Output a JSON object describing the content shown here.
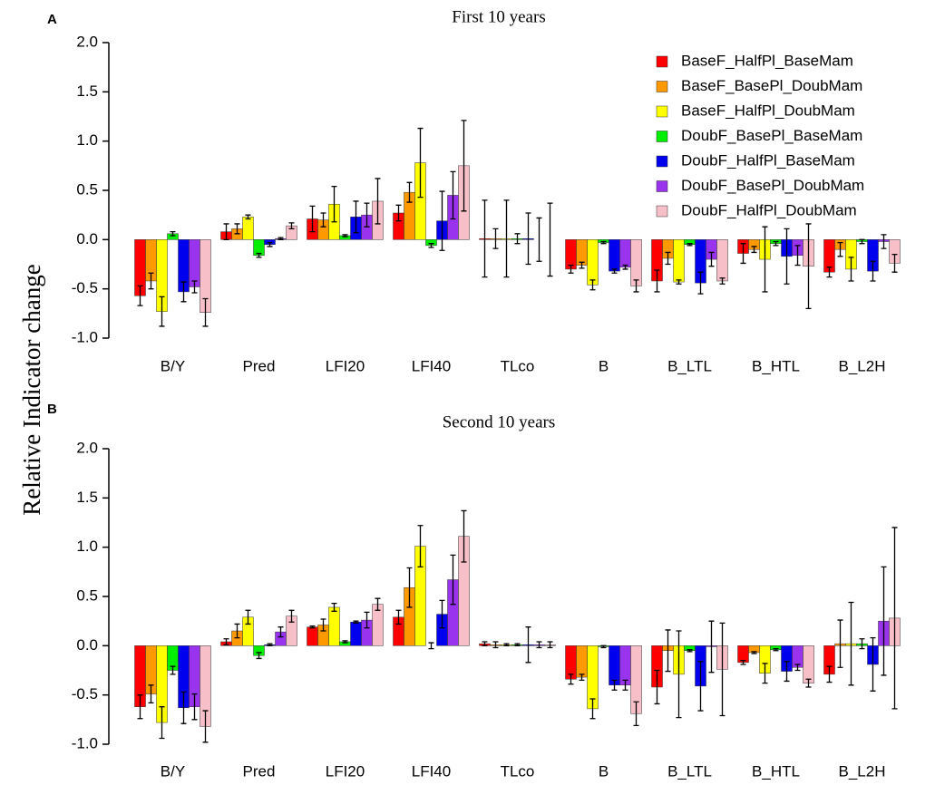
{
  "chart_data": [
    {
      "type": "bar",
      "panel_label": "A",
      "title": "First 10 years",
      "y_label": "Relative Indicator change",
      "categories": [
        "B/Y",
        "Pred",
        "LFI20",
        "LFI40",
        "TLco",
        "B",
        "B_LTL",
        "B_HTL",
        "B_L2H"
      ],
      "ylim": [
        -1.0,
        2.0
      ],
      "yticks": [
        {
          "value": -1.0,
          "label": "-1.0"
        },
        -0.5,
        {
          "value": 0.0,
          "label": "0.0"
        },
        0.5,
        {
          "value": 1.0,
          "label": "1.0"
        },
        1.5,
        {
          "value": 2.0,
          "label": "2.0"
        }
      ],
      "legend": "upper right",
      "series": [
        {
          "name": "BaseF_HalfPl_BaseMam",
          "color": "#ff0000",
          "values": [
            -0.57,
            0.08,
            0.21,
            0.27,
            0.01,
            -0.3,
            -0.42,
            -0.14,
            -0.33
          ],
          "errors": [
            0.1,
            0.08,
            0.13,
            0.08,
            0.39,
            0.04,
            0.11,
            0.1,
            0.05
          ]
        },
        {
          "name": "BaseF_BasePl_DoubMam",
          "color": "#ff9900",
          "values": [
            -0.42,
            0.11,
            0.2,
            0.48,
            0.01,
            -0.26,
            -0.19,
            -0.1,
            -0.1
          ],
          "errors": [
            0.08,
            0.05,
            0.07,
            0.1,
            0.1,
            0.03,
            0.06,
            0.03,
            0.07
          ]
        },
        {
          "name": "BaseF_HalfPl_DoubMam",
          "color": "#ffff00",
          "values": [
            -0.73,
            0.23,
            0.36,
            0.78,
            0.01,
            -0.46,
            -0.43,
            -0.2,
            -0.3
          ],
          "errors": [
            0.15,
            0.02,
            0.18,
            0.35,
            0.39,
            0.05,
            0.02,
            0.33,
            0.12
          ]
        },
        {
          "name": "DoubF_BasePl_BaseMam",
          "color": "#00ee00",
          "values": [
            0.06,
            -0.16,
            0.04,
            -0.06,
            0.01,
            -0.03,
            -0.05,
            -0.04,
            -0.02
          ],
          "errors": [
            0.02,
            0.02,
            0.01,
            0.02,
            0.05,
            0.01,
            0.01,
            0.02,
            0.02
          ]
        },
        {
          "name": "DoubF_HalfPl_BaseMam",
          "color": "#0000ee",
          "values": [
            -0.53,
            -0.05,
            0.23,
            0.19,
            0.01,
            -0.32,
            -0.44,
            -0.17,
            -0.32
          ],
          "errors": [
            0.1,
            0.02,
            0.16,
            0.3,
            0.26,
            0.02,
            0.11,
            0.28,
            0.1
          ]
        },
        {
          "name": "DoubF_BasePl_DoubMam",
          "color": "#9933ee",
          "values": [
            -0.48,
            0.01,
            0.25,
            0.45,
            0.0,
            -0.28,
            -0.2,
            -0.16,
            -0.02
          ],
          "errors": [
            0.06,
            0.01,
            0.12,
            0.24,
            0.22,
            0.02,
            0.07,
            0.1,
            0.07
          ]
        },
        {
          "name": "DoubF_HalfPl_DoubMam",
          "color": "#f7c0c8",
          "values": [
            -0.74,
            0.14,
            0.39,
            0.75,
            0.0,
            -0.47,
            -0.42,
            -0.27,
            -0.24
          ],
          "errors": [
            0.14,
            0.03,
            0.23,
            0.46,
            0.37,
            0.06,
            0.03,
            0.43,
            0.09
          ]
        }
      ]
    },
    {
      "type": "bar",
      "panel_label": "B",
      "title": "Second 10 years",
      "categories": [
        "B/Y",
        "Pred",
        "LFI20",
        "LFI40",
        "TLco",
        "B",
        "B_LTL",
        "B_HTL",
        "B_L2H"
      ],
      "ylim": [
        -1.0,
        2.0
      ],
      "yticks": [
        {
          "value": -1.0,
          "label": "-1.0"
        },
        -0.5,
        {
          "value": 0.0,
          "label": "0.0"
        },
        0.5,
        {
          "value": 1.0,
          "label": "1.0"
        },
        1.5,
        {
          "value": 2.0,
          "label": "2.0"
        }
      ],
      "series": [
        {
          "color": "#ff0000",
          "values": [
            -0.62,
            0.04,
            0.19,
            0.29,
            0.02,
            -0.34,
            -0.42,
            -0.17,
            -0.29
          ],
          "errors": [
            0.12,
            0.03,
            0.01,
            0.07,
            0.02,
            0.05,
            0.17,
            0.02,
            0.08
          ]
        },
        {
          "color": "#ff9900",
          "values": [
            -0.49,
            0.15,
            0.21,
            0.59,
            0.01,
            -0.32,
            -0.05,
            -0.07,
            0.02
          ],
          "errors": [
            0.09,
            0.07,
            0.06,
            0.2,
            0.03,
            0.03,
            0.21,
            0.01,
            0.24
          ]
        },
        {
          "color": "#ffff00",
          "values": [
            -0.78,
            0.29,
            0.39,
            1.01,
            0.01,
            -0.64,
            -0.29,
            -0.28,
            0.02
          ],
          "errors": [
            0.16,
            0.07,
            0.04,
            0.21,
            0.01,
            0.1,
            0.44,
            0.1,
            0.42
          ]
        },
        {
          "color": "#00ee00",
          "values": [
            -0.25,
            -0.1,
            0.04,
            0.0,
            0.01,
            -0.01,
            -0.05,
            -0.04,
            0.02
          ],
          "errors": [
            0.04,
            0.03,
            0.01,
            0.03,
            0.01,
            0.01,
            0.01,
            0.01,
            0.05
          ]
        },
        {
          "color": "#0000ee",
          "values": [
            -0.63,
            0.01,
            0.24,
            0.32,
            0.01,
            -0.4,
            -0.41,
            -0.26,
            -0.19
          ],
          "errors": [
            0.16,
            0.01,
            0.01,
            0.14,
            0.18,
            0.05,
            0.25,
            0.1,
            0.27
          ]
        },
        {
          "color": "#9933ee",
          "values": [
            -0.62,
            0.14,
            0.26,
            0.67,
            0.01,
            -0.4,
            -0.01,
            -0.22,
            0.25
          ],
          "errors": [
            0.13,
            0.05,
            0.08,
            0.25,
            0.03,
            0.05,
            0.26,
            0.03,
            0.55
          ]
        },
        {
          "color": "#f7c0c8",
          "values": [
            -0.82,
            0.3,
            0.42,
            1.11,
            0.01,
            -0.69,
            -0.24,
            -0.38,
            0.28
          ],
          "errors": [
            0.16,
            0.06,
            0.06,
            0.26,
            0.03,
            0.12,
            0.47,
            0.04,
            0.92
          ]
        }
      ]
    }
  ]
}
